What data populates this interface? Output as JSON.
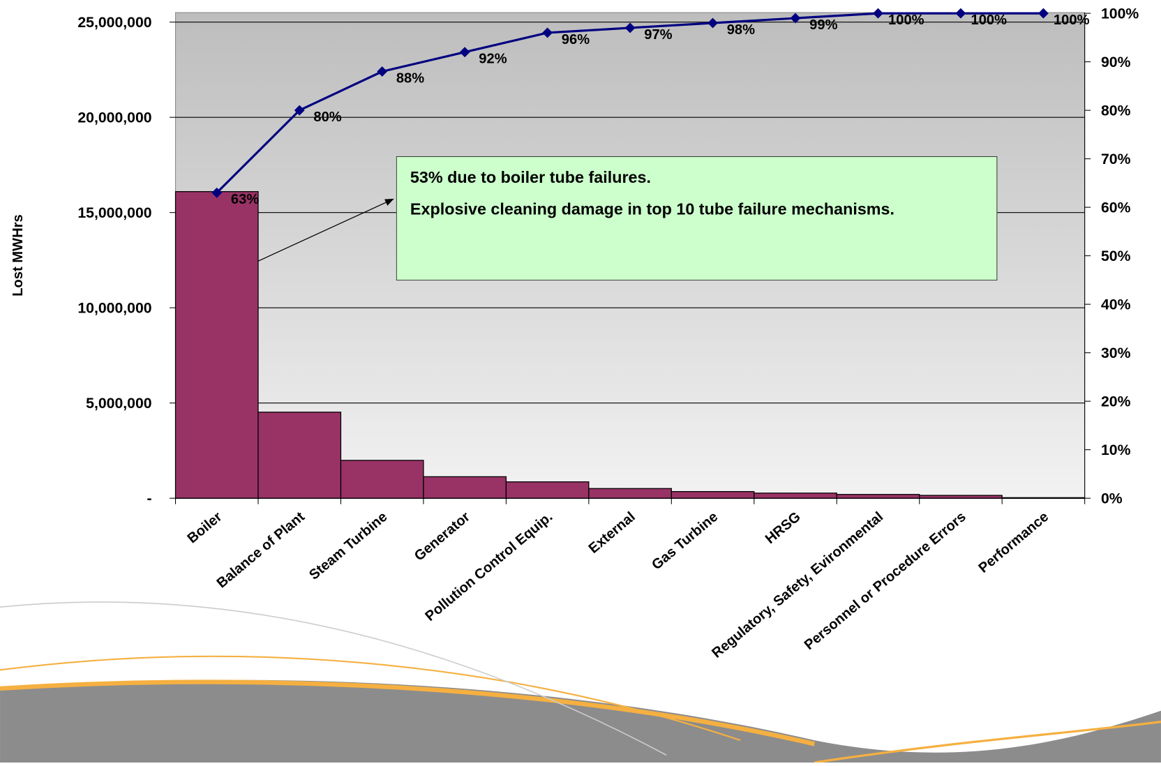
{
  "chart_data": {
    "type": "bar",
    "y_label": "Lost MWHrs",
    "categories": [
      "Boiler",
      "Balance of Plant",
      "Steam Turbine",
      "Generator",
      "Pollution Control Equip.",
      "External",
      "Gas Turbine",
      "HRSG",
      "Regulatory, Safety, Evironmental",
      "Personnel or Procedure Errors",
      "Performance"
    ],
    "series": [
      {
        "type": "bar",
        "color": "#993366",
        "values": [
          16100000,
          4520000,
          1990000,
          1130000,
          860000,
          510000,
          350000,
          270000,
          200000,
          150000,
          30000
        ]
      },
      {
        "type": "line",
        "axis": "y2",
        "color": "#000080",
        "values": [
          63,
          80,
          88,
          92,
          96,
          97,
          98,
          99,
          100,
          100,
          100
        ],
        "value_labels": [
          "63%",
          "80%",
          "88%",
          "92%",
          "96%",
          "97%",
          "98%",
          "99%",
          "100%",
          "100%",
          "100%"
        ]
      }
    ],
    "ylim": [
      0,
      25500000
    ],
    "yticks": [
      {
        "value": 0,
        "label": "-"
      },
      {
        "value": 5000000,
        "label": "5,000,000"
      },
      {
        "value": 10000000,
        "label": "10,000,000"
      },
      {
        "value": 15000000,
        "label": "15,000,000"
      },
      {
        "value": 20000000,
        "label": "20,000,000"
      },
      {
        "value": 25000000,
        "label": "25,000,000"
      }
    ],
    "y2lim": [
      0,
      100
    ],
    "y2ticks": [
      {
        "value": 0,
        "label": "0%"
      },
      {
        "value": 10,
        "label": "10%"
      },
      {
        "value": 20,
        "label": "20%"
      },
      {
        "value": 30,
        "label": "30%"
      },
      {
        "value": 40,
        "label": "40%"
      },
      {
        "value": 50,
        "label": "50%"
      },
      {
        "value": 60,
        "label": "60%"
      },
      {
        "value": 70,
        "label": "70%"
      },
      {
        "value": 80,
        "label": "80%"
      },
      {
        "value": 90,
        "label": "90%"
      },
      {
        "value": 100,
        "label": "100%"
      }
    ],
    "grid": true,
    "annotations": [
      "53% due to boiler tube failures.",
      "Explosive cleaning damage in top 10 tube failure mechanisms."
    ]
  }
}
